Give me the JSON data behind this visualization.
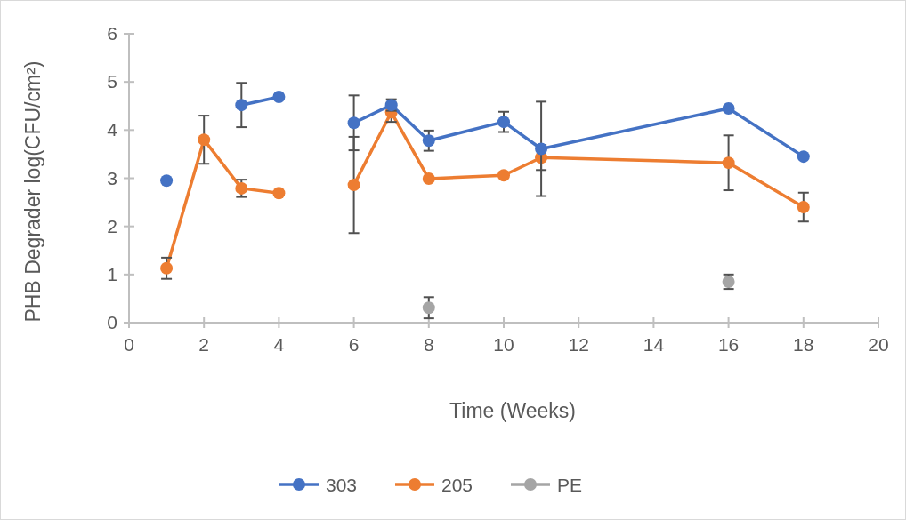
{
  "chart_data": {
    "type": "line",
    "xlabel": "Time (Weeks)",
    "ylabel": "PHB Degrader log(CFU/cm²)",
    "x": [
      1,
      2,
      3,
      4,
      5,
      6,
      7,
      8,
      10,
      11,
      16,
      18
    ],
    "series": [
      {
        "name": "303",
        "color": "#4472c4",
        "values": [
          2.95,
          null,
          4.52,
          4.69,
          null,
          4.15,
          4.52,
          3.78,
          4.17,
          3.61,
          4.45,
          3.45
        ],
        "errors": [
          null,
          null,
          0.46,
          null,
          null,
          0.57,
          0.12,
          0.21,
          0.21,
          0.98,
          null,
          null
        ]
      },
      {
        "name": "205",
        "color": "#ed7d31",
        "values": [
          1.13,
          3.8,
          2.79,
          2.69,
          null,
          2.86,
          4.37,
          2.99,
          3.06,
          3.43,
          3.32,
          2.4
        ],
        "errors": [
          0.22,
          0.5,
          0.18,
          null,
          null,
          1.0,
          0.2,
          null,
          null,
          0.26,
          0.57,
          0.3
        ]
      },
      {
        "name": "PE",
        "type": "scatter",
        "color": "#a5a5a5",
        "x": [
          8,
          16
        ],
        "values": [
          0.31,
          0.85
        ],
        "errors": [
          0.22,
          0.15
        ]
      }
    ],
    "xlim": [
      0,
      20
    ],
    "xticks": [
      0,
      2,
      4,
      6,
      8,
      10,
      12,
      14,
      16,
      18,
      20
    ],
    "ylim": [
      0,
      6
    ],
    "yticks": [
      0,
      1,
      2,
      3,
      4,
      5,
      6
    ],
    "grid": false,
    "legend": "bottom",
    "marker": "circle",
    "line_style": "solid"
  }
}
